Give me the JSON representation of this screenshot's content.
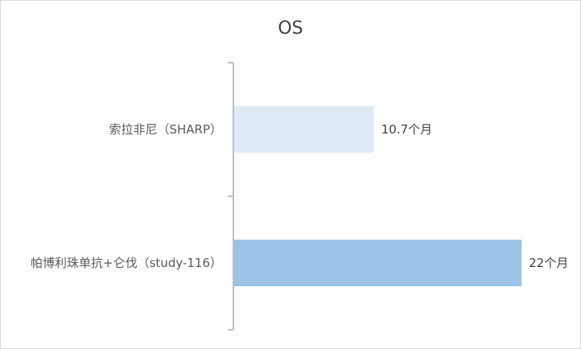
{
  "chart_data": {
    "type": "bar",
    "orientation": "horizontal",
    "title": "OS",
    "categories": [
      "索拉非尼（SHARP）",
      "帕博利珠单抗+仑伐（study-116）"
    ],
    "values": [
      10.7,
      22
    ],
    "data_labels": [
      "10.7个月",
      "22个月"
    ],
    "bar_colors": [
      "#deebf7",
      "#9dc3e6"
    ],
    "axis_color": "#bfbfbf",
    "xlim": [
      0,
      22.6
    ],
    "legend": "none",
    "grid": false
  }
}
